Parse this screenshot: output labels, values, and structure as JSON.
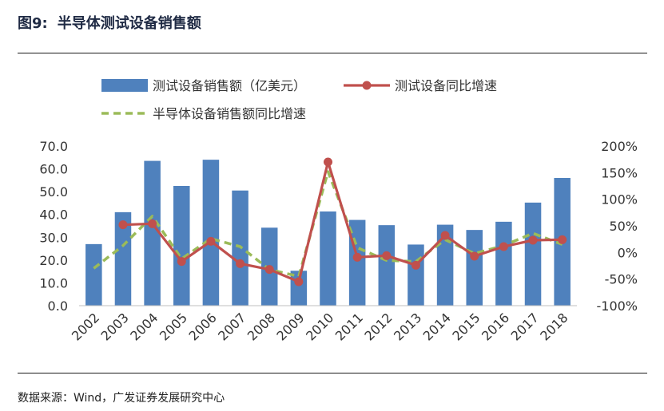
{
  "figure": {
    "number": "图9:",
    "title": "半导体测试设备销售额"
  },
  "source": "数据来源：Wind，广发证券发展研究中心",
  "chart_data": {
    "type": "bar",
    "categories": [
      "2002",
      "2003",
      "2004",
      "2005",
      "2006",
      "2007",
      "2008",
      "2009",
      "2010",
      "2011",
      "2012",
      "2013",
      "2014",
      "2015",
      "2016",
      "2017",
      "2018"
    ],
    "series": [
      {
        "name": "测试设备销售额（亿美元）",
        "type": "bar",
        "axis": "left",
        "color": "#4f81bd",
        "values": [
          27.0,
          41.0,
          63.5,
          52.5,
          64.0,
          50.5,
          34.2,
          15.3,
          41.3,
          37.6,
          35.3,
          26.8,
          35.5,
          33.2,
          36.8,
          45.2,
          56.0
        ]
      },
      {
        "name": "测试设备同比增速",
        "type": "line",
        "axis": "right",
        "color": "#c0504d",
        "marker": "circle",
        "values": [
          null,
          52,
          54,
          -17,
          21,
          -21,
          -32,
          -55,
          170,
          -9,
          -6,
          -24,
          32,
          -7,
          11,
          23,
          24
        ]
      },
      {
        "name": "半导体设备销售额同比增速",
        "type": "line",
        "axis": "right",
        "color": "#9bbb59",
        "dash": "dashed",
        "values": [
          -30,
          13,
          68,
          -12,
          26,
          11,
          -32,
          -45,
          152,
          9,
          -15,
          -17,
          24,
          -2,
          13,
          36,
          15
        ]
      }
    ],
    "y_left": {
      "ylim": [
        0,
        70
      ],
      "ticks": [
        "0.0",
        "10.0",
        "20.0",
        "30.0",
        "40.0",
        "50.0",
        "60.0",
        "70.0"
      ],
      "tick_values": [
        0,
        10,
        20,
        30,
        40,
        50,
        60,
        70
      ]
    },
    "y_right": {
      "ylim": [
        -100,
        200
      ],
      "ticks": [
        "-100%",
        "-50%",
        "0%",
        "50%",
        "100%",
        "150%",
        "200%"
      ],
      "tick_values": [
        -100,
        -50,
        0,
        50,
        100,
        150,
        200
      ]
    },
    "legend": {
      "placement": "top",
      "layout": "two rows"
    },
    "grid": false,
    "x_tick_rotation": "-45"
  }
}
